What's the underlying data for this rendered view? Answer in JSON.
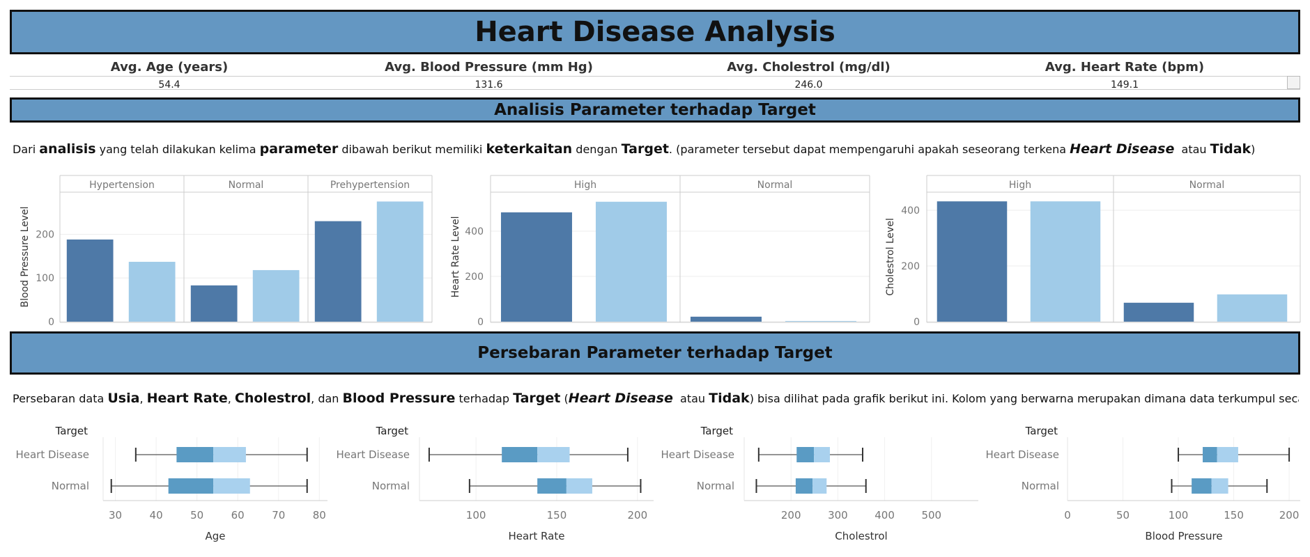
{
  "header": {
    "title": "Heart Disease Analysis"
  },
  "kpis": [
    {
      "label": "Avg. Age (years)",
      "value": "54.4"
    },
    {
      "label": "Avg. Blood Pressure (mm Hg)",
      "value": "131.6"
    },
    {
      "label": "Avg. Cholestrol (mg/dl)",
      "value": "246.0"
    },
    {
      "label": "Avg. Heart Rate (bpm)",
      "value": "149.1"
    }
  ],
  "section1": {
    "title": "Analisis Parameter terhadap Target",
    "description": [
      {
        "t": "Dari ",
        "b": false
      },
      {
        "t": "analisis",
        "b": true
      },
      {
        "t": " yang telah dilakukan kelima ",
        "b": false
      },
      {
        "t": "parameter",
        "b": true
      },
      {
        "t": " dibawah berikut memiliki ",
        "b": false
      },
      {
        "t": "keterkaitan",
        "b": true
      },
      {
        "t": " dengan ",
        "b": false
      },
      {
        "t": "Target",
        "b": true
      },
      {
        "t": ". (parameter tersebut dapat mempengaruhi apakah seseorang terkena ",
        "b": false
      },
      {
        "t": "Heart Disease",
        "b": true,
        "i": true
      },
      {
        "t": "  atau ",
        "b": false
      },
      {
        "t": "Tidak",
        "b": true
      },
      {
        "t": ")",
        "b": false
      }
    ]
  },
  "section2": {
    "title": "Persebaran Parameter terhadap Target",
    "description": [
      {
        "t": "Persebaran data ",
        "b": false
      },
      {
        "t": "Usia",
        "b": true
      },
      {
        "t": ", ",
        "b": false
      },
      {
        "t": "Heart Rate",
        "b": true
      },
      {
        "t": ", ",
        "b": false
      },
      {
        "t": "Cholestrol",
        "b": true
      },
      {
        "t": ", dan ",
        "b": false
      },
      {
        "t": "Blood Pressure",
        "b": true
      },
      {
        "t": " terhadap ",
        "b": false
      },
      {
        "t": "Target",
        "b": true
      },
      {
        "t": " (",
        "b": false
      },
      {
        "t": "Heart Disease",
        "b": true,
        "i": true
      },
      {
        "t": "  atau ",
        "b": false
      },
      {
        "t": "Tidak",
        "b": true
      },
      {
        "t": ") bisa dilihat pada grafik berikut ini. Kolom yang berwarna merupakan dimana data terkumpul secara umum dan garis yang teg..",
        "b": false
      }
    ]
  },
  "colors": {
    "accent": "#6497c2",
    "dark_bar": "#4e79a7",
    "light_bar": "#a0cbe8",
    "box_dark": "#5a9bc4",
    "box_light": "#a9d1ee"
  },
  "chart_data": [
    {
      "type": "bar",
      "ylabel": "Blood Pressure Level",
      "panels": [
        "Hypertension",
        "Normal",
        "Prehypertension"
      ],
      "values": [
        [
          188,
          137
        ],
        [
          83,
          118
        ],
        [
          230,
          275
        ]
      ],
      "ylim": [
        0,
        290
      ],
      "yticks": [
        0,
        100,
        200
      ]
    },
    {
      "type": "bar",
      "ylabel": "Heart Rate Level",
      "panels": [
        "High",
        "Normal"
      ],
      "values": [
        [
          483,
          530
        ],
        [
          22,
          3
        ]
      ],
      "ylim": [
        0,
        560
      ],
      "yticks": [
        0,
        200,
        400
      ]
    },
    {
      "type": "bar",
      "ylabel": "Cholestrol Level",
      "panels": [
        "High",
        "Normal"
      ],
      "values": [
        [
          432,
          432
        ],
        [
          68,
          98
        ]
      ],
      "ylim": [
        0,
        455
      ],
      "yticks": [
        0,
        200,
        400
      ]
    },
    {
      "type": "boxplot",
      "legend_title": "Target",
      "xlabel": "Age",
      "categories": [
        "Heart Disease",
        "Normal"
      ],
      "xlim": [
        27,
        82
      ],
      "xticks": [
        30,
        40,
        50,
        60,
        70,
        80
      ],
      "boxes": [
        {
          "min": 35,
          "q1": 45,
          "median": 54,
          "q3": 62,
          "max": 77
        },
        {
          "min": 29,
          "q1": 43,
          "median": 54,
          "q3": 63,
          "max": 77
        }
      ]
    },
    {
      "type": "boxplot",
      "legend_title": "Target",
      "xlabel": "Heart Rate",
      "categories": [
        "Heart Disease",
        "Normal"
      ],
      "xlim": [
        65,
        210
      ],
      "xticks": [
        100,
        150,
        200
      ],
      "boxes": [
        {
          "min": 71,
          "q1": 116,
          "median": 138,
          "q3": 158,
          "max": 194
        },
        {
          "min": 96,
          "q1": 138,
          "median": 156,
          "q3": 172,
          "max": 202
        }
      ]
    },
    {
      "type": "boxplot",
      "legend_title": "Target",
      "xlabel": "Cholestrol",
      "categories": [
        "Heart Disease",
        "Normal"
      ],
      "xlim": [
        100,
        600
      ],
      "xticks": [
        200,
        300,
        400,
        500
      ],
      "boxes": [
        {
          "min": 131,
          "q1": 212,
          "median": 249,
          "q3": 283,
          "max": 353
        },
        {
          "min": 126,
          "q1": 210,
          "median": 246,
          "q3": 276,
          "max": 360
        }
      ]
    },
    {
      "type": "boxplot",
      "legend_title": "Target",
      "xlabel": "Blood Pressure",
      "categories": [
        "Heart Disease",
        "Normal"
      ],
      "xlim": [
        0,
        210
      ],
      "xticks": [
        0,
        50,
        100,
        150,
        200
      ],
      "boxes": [
        {
          "min": 100,
          "q1": 122,
          "median": 135,
          "q3": 154,
          "max": 200
        },
        {
          "min": 94,
          "q1": 112,
          "median": 130,
          "q3": 145,
          "max": 180
        }
      ]
    }
  ]
}
